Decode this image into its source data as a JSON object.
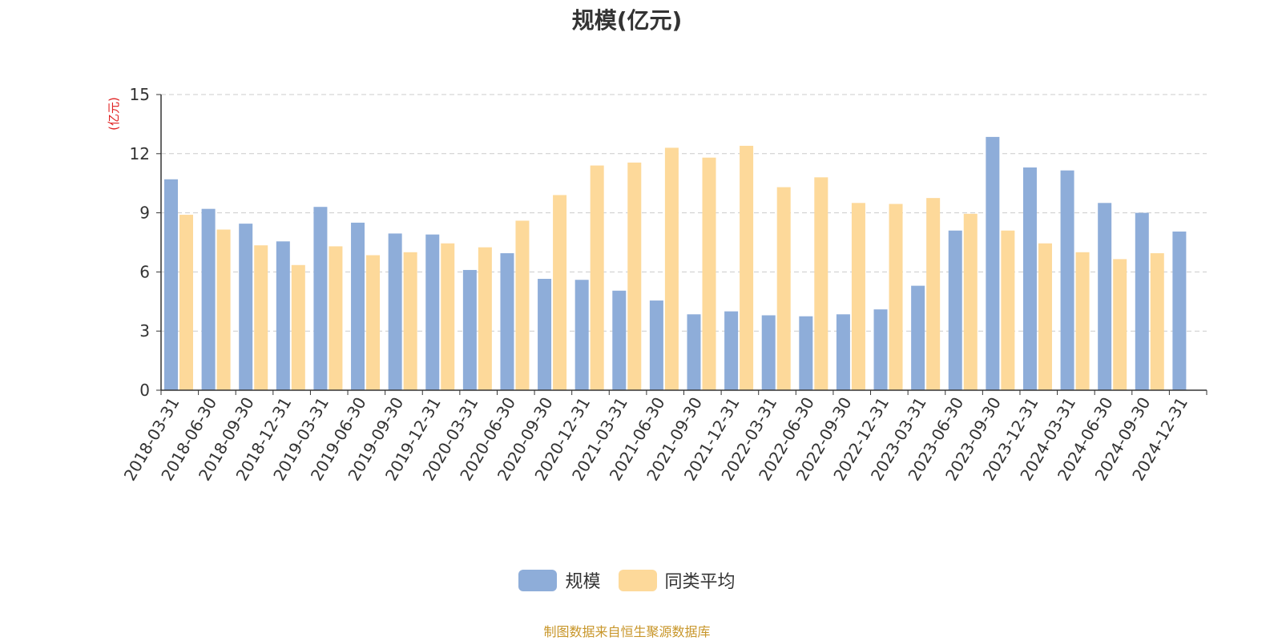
{
  "colors": {
    "series1": "#8eadd9",
    "series2": "#fdd99a",
    "axis": "#333333",
    "grid": "#cccccc",
    "unit_label": "#e02020",
    "source": "#c8962a"
  },
  "chart_data": {
    "type": "bar",
    "title": "规模(亿元)",
    "ylabel": "(亿元)",
    "xlabel": "",
    "ylim": [
      0,
      15
    ],
    "yticks": [
      0,
      3,
      6,
      9,
      12,
      15
    ],
    "grid": true,
    "legend_position": "bottom-center",
    "categories": [
      "2018-03-31",
      "2018-06-30",
      "2018-09-30",
      "2018-12-31",
      "2019-03-31",
      "2019-06-30",
      "2019-09-30",
      "2019-12-31",
      "2020-03-31",
      "2020-06-30",
      "2020-09-30",
      "2020-12-31",
      "2021-03-31",
      "2021-06-30",
      "2021-09-30",
      "2021-12-31",
      "2022-03-31",
      "2022-06-30",
      "2022-09-30",
      "2022-12-31",
      "2023-03-31",
      "2023-06-30",
      "2023-09-30",
      "2023-12-31",
      "2024-03-31",
      "2024-06-30",
      "2024-09-30",
      "2024-12-31"
    ],
    "series": [
      {
        "name": "规模",
        "values": [
          10.7,
          9.2,
          8.45,
          7.55,
          9.3,
          8.5,
          7.95,
          7.9,
          6.1,
          6.95,
          5.65,
          5.6,
          5.05,
          4.55,
          3.85,
          4.0,
          3.8,
          3.75,
          3.85,
          4.1,
          5.3,
          8.1,
          12.85,
          11.3,
          11.15,
          9.5,
          9.0,
          8.05
        ]
      },
      {
        "name": "同类平均",
        "values": [
          8.9,
          8.15,
          7.35,
          6.35,
          7.3,
          6.85,
          7.0,
          7.45,
          7.25,
          8.6,
          9.9,
          11.4,
          11.55,
          12.3,
          11.8,
          12.4,
          10.3,
          10.8,
          9.5,
          9.45,
          9.75,
          8.95,
          8.1,
          7.45,
          7.0,
          6.65,
          6.95,
          null
        ]
      }
    ]
  },
  "footer": {
    "source_text": "制图数据来自恒生聚源数据库"
  }
}
